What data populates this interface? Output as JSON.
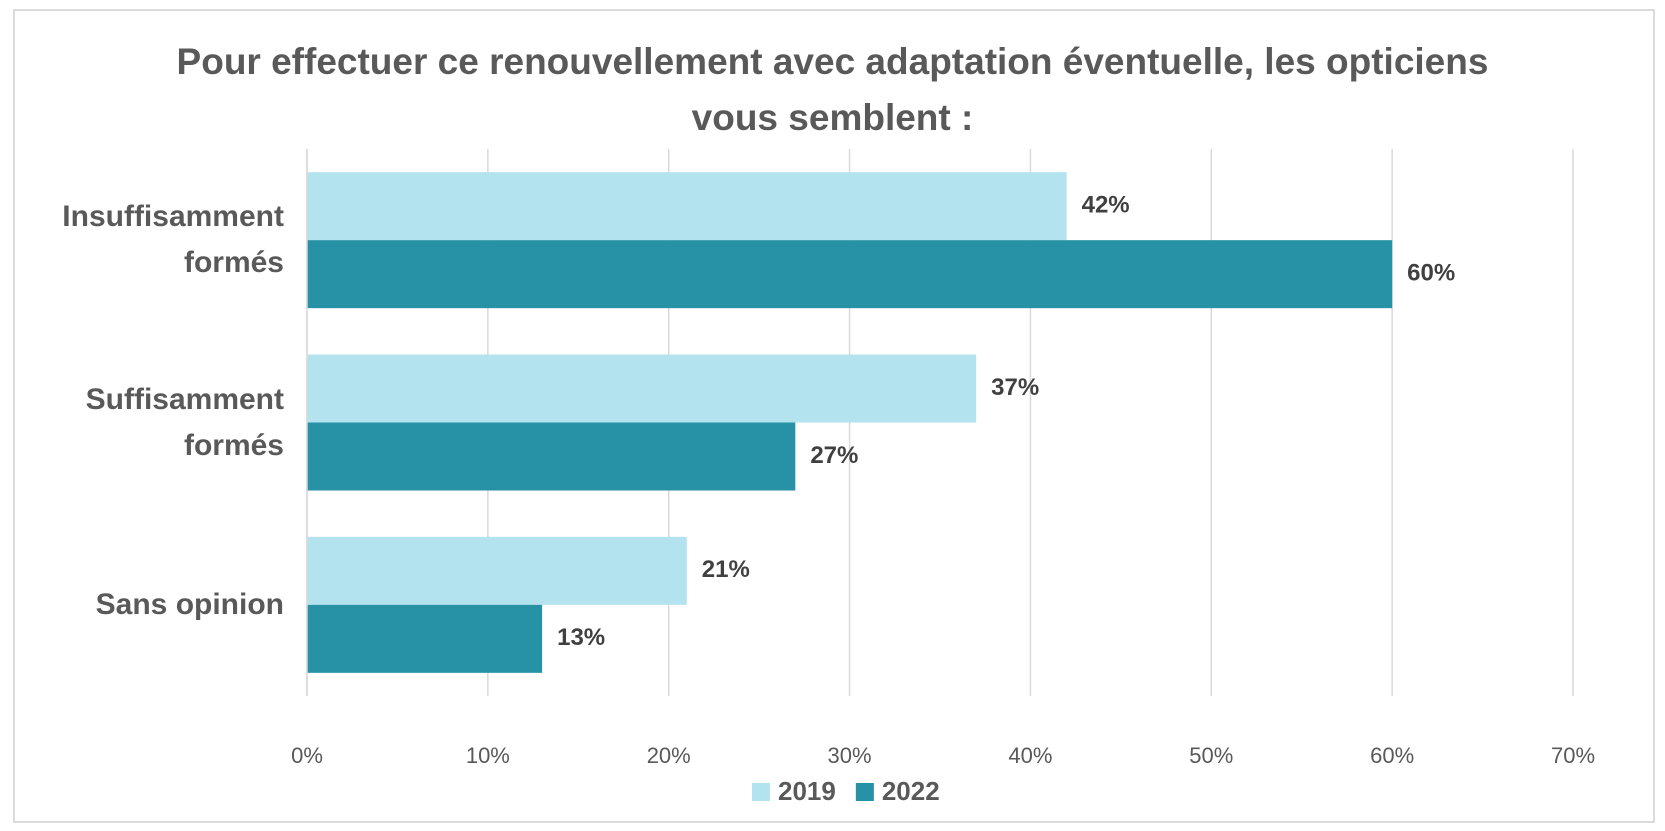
{
  "chart_data": {
    "type": "hbar",
    "title": "Pour effectuer ce renouvellement avec adaptation éventuelle, les opticiens vous semblent :",
    "categories": [
      "Insuffisamment formés",
      "Suffisamment formés",
      "Sans opinion"
    ],
    "series": [
      {
        "name": "2019",
        "color": "#b3e3ee",
        "values": [
          42,
          37,
          21
        ],
        "value_labels": [
          "42%",
          "37%",
          "21%"
        ]
      },
      {
        "name": "2022",
        "color": "#2792a6",
        "values": [
          60,
          27,
          13
        ],
        "value_labels": [
          "60%",
          "27%",
          "13%"
        ]
      }
    ],
    "xlim": [
      0,
      70
    ],
    "xticks": [
      {
        "value": 0,
        "label": "0%"
      },
      {
        "value": 10,
        "label": "10%"
      },
      {
        "value": 20,
        "label": "20%"
      },
      {
        "value": 30,
        "label": "30%"
      },
      {
        "value": 40,
        "label": "40%"
      },
      {
        "value": 50,
        "label": "50%"
      },
      {
        "value": 60,
        "label": "60%"
      },
      {
        "value": 70,
        "label": "70%"
      }
    ],
    "grid": true,
    "legend": "bottom"
  }
}
